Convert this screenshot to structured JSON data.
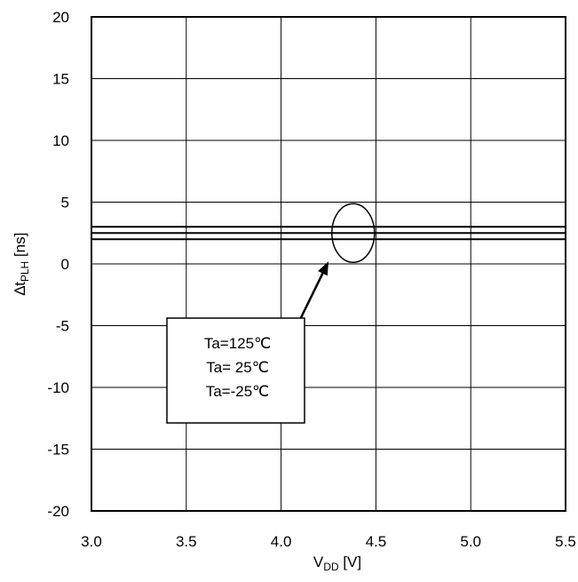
{
  "chart_data": {
    "type": "line",
    "xlabel": {
      "main": "V",
      "sub": "DD",
      "unit": " [V]"
    },
    "ylabel": {
      "prefix": "∆",
      "main": "t",
      "sub": "PLH",
      "unit": " [ns]"
    },
    "xlim": [
      3.0,
      5.5
    ],
    "ylim": [
      -20,
      20
    ],
    "x_ticks": [
      3.0,
      3.5,
      4.0,
      4.5,
      5.0,
      5.5
    ],
    "x_tick_labels": [
      "3.0",
      "3.5",
      "4.0",
      "4.5",
      "5.0",
      "5.5"
    ],
    "y_ticks": [
      20,
      15,
      10,
      5,
      0,
      -5,
      -10,
      -15,
      -20
    ],
    "y_tick_labels": [
      "20",
      "15",
      "10",
      "5",
      "0",
      "-5",
      "-10",
      "-15",
      "-20"
    ],
    "grid": true,
    "series": [
      {
        "name": "Ta=125℃",
        "x": [
          3.0,
          5.5
        ],
        "y": [
          3.0,
          3.0
        ]
      },
      {
        "name": "Ta= 25℃",
        "x": [
          3.0,
          5.5
        ],
        "y": [
          2.5,
          2.5
        ]
      },
      {
        "name": "Ta=-25℃",
        "x": [
          3.0,
          5.5
        ],
        "y": [
          2.0,
          2.0
        ]
      }
    ],
    "annotation": {
      "labels": [
        "Ta=125℃",
        "Ta= 25℃",
        "Ta=-25℃"
      ],
      "ellipse_center": [
        4.38,
        2.5
      ],
      "arrow_from": [
        4.1,
        -4.5
      ],
      "arrow_to": [
        4.25,
        0.2
      ]
    },
    "line_color": "#000000",
    "grid_color": "#000000"
  }
}
